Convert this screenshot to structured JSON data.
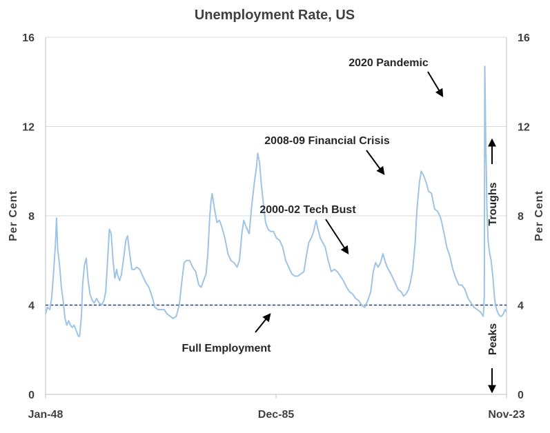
{
  "chart_data": {
    "type": "line",
    "title": "Unemployment Rate, US",
    "ylabel": "Per Cent",
    "ylabel_right": "Per Cent",
    "ylim": [
      0,
      16
    ],
    "yticks": [
      0,
      4,
      8,
      12,
      16
    ],
    "xlim": [
      1948.0,
      2023.83
    ],
    "xticks": [
      {
        "label": "Jan-48",
        "value": 1948.0
      },
      {
        "label": "Dec-85",
        "value": 1985.92
      },
      {
        "label": "Nov-23",
        "value": 2023.83
      }
    ],
    "grid": true,
    "reference_line": {
      "label": "Full Employment",
      "value": 4,
      "style": "dashed",
      "color": "#1f3c88"
    },
    "series": [
      {
        "color": "#9dc3e6",
        "points": [
          [
            1948.0,
            3.6
          ],
          [
            1948.3,
            3.9
          ],
          [
            1948.7,
            3.8
          ],
          [
            1949.0,
            4.3
          ],
          [
            1949.3,
            5.4
          ],
          [
            1949.6,
            6.6
          ],
          [
            1949.8,
            7.9
          ],
          [
            1950.0,
            6.5
          ],
          [
            1950.3,
            5.8
          ],
          [
            1950.6,
            4.8
          ],
          [
            1950.9,
            4.2
          ],
          [
            1951.2,
            3.4
          ],
          [
            1951.5,
            3.1
          ],
          [
            1951.8,
            3.3
          ],
          [
            1952.1,
            3.1
          ],
          [
            1952.4,
            3.0
          ],
          [
            1952.7,
            3.1
          ],
          [
            1953.0,
            2.9
          ],
          [
            1953.4,
            2.6
          ],
          [
            1953.6,
            2.6
          ],
          [
            1953.9,
            3.5
          ],
          [
            1954.1,
            4.9
          ],
          [
            1954.4,
            5.8
          ],
          [
            1954.7,
            6.1
          ],
          [
            1955.0,
            5.1
          ],
          [
            1955.3,
            4.5
          ],
          [
            1955.7,
            4.2
          ],
          [
            1956.0,
            4.1
          ],
          [
            1956.4,
            4.3
          ],
          [
            1956.8,
            4.1
          ],
          [
            1957.2,
            4.0
          ],
          [
            1957.6,
            4.2
          ],
          [
            1957.9,
            4.6
          ],
          [
            1958.2,
            6.0
          ],
          [
            1958.5,
            7.4
          ],
          [
            1958.8,
            7.2
          ],
          [
            1959.1,
            6.0
          ],
          [
            1959.4,
            5.2
          ],
          [
            1959.7,
            5.6
          ],
          [
            1959.9,
            5.3
          ],
          [
            1960.2,
            5.1
          ],
          [
            1960.5,
            5.4
          ],
          [
            1960.9,
            6.2
          ],
          [
            1961.2,
            6.9
          ],
          [
            1961.5,
            7.1
          ],
          [
            1961.9,
            6.2
          ],
          [
            1962.2,
            5.6
          ],
          [
            1962.6,
            5.6
          ],
          [
            1963.0,
            5.7
          ],
          [
            1963.5,
            5.6
          ],
          [
            1964.0,
            5.3
          ],
          [
            1964.5,
            5.0
          ],
          [
            1965.0,
            4.8
          ],
          [
            1965.5,
            4.4
          ],
          [
            1966.0,
            3.9
          ],
          [
            1966.5,
            3.8
          ],
          [
            1967.0,
            3.8
          ],
          [
            1967.5,
            3.8
          ],
          [
            1968.0,
            3.6
          ],
          [
            1968.5,
            3.5
          ],
          [
            1969.0,
            3.4
          ],
          [
            1969.5,
            3.5
          ],
          [
            1970.0,
            4.0
          ],
          [
            1970.4,
            5.0
          ],
          [
            1970.8,
            5.9
          ],
          [
            1971.2,
            6.0
          ],
          [
            1971.7,
            6.0
          ],
          [
            1972.2,
            5.7
          ],
          [
            1972.7,
            5.5
          ],
          [
            1973.2,
            4.9
          ],
          [
            1973.6,
            4.8
          ],
          [
            1974.0,
            5.1
          ],
          [
            1974.4,
            5.4
          ],
          [
            1974.7,
            6.3
          ],
          [
            1975.0,
            7.9
          ],
          [
            1975.2,
            8.6
          ],
          [
            1975.4,
            9.0
          ],
          [
            1975.8,
            8.3
          ],
          [
            1976.2,
            7.7
          ],
          [
            1976.6,
            7.8
          ],
          [
            1977.0,
            7.5
          ],
          [
            1977.5,
            7.0
          ],
          [
            1978.0,
            6.3
          ],
          [
            1978.5,
            6.0
          ],
          [
            1979.0,
            5.9
          ],
          [
            1979.5,
            5.7
          ],
          [
            1979.9,
            6.0
          ],
          [
            1980.3,
            7.2
          ],
          [
            1980.6,
            7.8
          ],
          [
            1981.0,
            7.5
          ],
          [
            1981.5,
            7.2
          ],
          [
            1981.9,
            8.4
          ],
          [
            1982.3,
            9.4
          ],
          [
            1982.7,
            10.2
          ],
          [
            1982.9,
            10.8
          ],
          [
            1983.2,
            10.4
          ],
          [
            1983.5,
            9.4
          ],
          [
            1983.9,
            8.4
          ],
          [
            1984.2,
            7.7
          ],
          [
            1984.6,
            7.4
          ],
          [
            1985.0,
            7.3
          ],
          [
            1985.5,
            7.3
          ],
          [
            1986.0,
            7.0
          ],
          [
            1986.5,
            6.9
          ],
          [
            1987.0,
            6.6
          ],
          [
            1987.5,
            6.0
          ],
          [
            1988.0,
            5.7
          ],
          [
            1988.5,
            5.4
          ],
          [
            1989.0,
            5.3
          ],
          [
            1989.5,
            5.3
          ],
          [
            1990.0,
            5.4
          ],
          [
            1990.5,
            5.5
          ],
          [
            1990.9,
            6.2
          ],
          [
            1991.3,
            6.8
          ],
          [
            1991.7,
            7.0
          ],
          [
            1992.1,
            7.3
          ],
          [
            1992.5,
            7.8
          ],
          [
            1992.8,
            7.4
          ],
          [
            1993.2,
            7.0
          ],
          [
            1993.6,
            6.8
          ],
          [
            1994.0,
            6.6
          ],
          [
            1994.5,
            6.0
          ],
          [
            1995.0,
            5.5
          ],
          [
            1995.5,
            5.6
          ],
          [
            1996.0,
            5.5
          ],
          [
            1996.5,
            5.3
          ],
          [
            1997.0,
            5.1
          ],
          [
            1997.5,
            4.8
          ],
          [
            1998.0,
            4.6
          ],
          [
            1998.5,
            4.5
          ],
          [
            1999.0,
            4.3
          ],
          [
            1999.5,
            4.2
          ],
          [
            2000.0,
            4.0
          ],
          [
            2000.5,
            3.9
          ],
          [
            2001.0,
            4.2
          ],
          [
            2001.5,
            4.6
          ],
          [
            2001.9,
            5.5
          ],
          [
            2002.3,
            5.9
          ],
          [
            2002.7,
            5.7
          ],
          [
            2003.1,
            5.9
          ],
          [
            2003.5,
            6.3
          ],
          [
            2003.8,
            6.0
          ],
          [
            2004.2,
            5.7
          ],
          [
            2004.6,
            5.5
          ],
          [
            2005.0,
            5.3
          ],
          [
            2005.5,
            5.0
          ],
          [
            2006.0,
            4.7
          ],
          [
            2006.5,
            4.6
          ],
          [
            2006.9,
            4.4
          ],
          [
            2007.3,
            4.5
          ],
          [
            2007.7,
            4.7
          ],
          [
            2008.0,
            5.0
          ],
          [
            2008.4,
            5.6
          ],
          [
            2008.8,
            6.8
          ],
          [
            2009.1,
            8.3
          ],
          [
            2009.5,
            9.5
          ],
          [
            2009.8,
            10.0
          ],
          [
            2010.2,
            9.8
          ],
          [
            2010.6,
            9.5
          ],
          [
            2011.0,
            9.1
          ],
          [
            2011.5,
            9.0
          ],
          [
            2012.0,
            8.3
          ],
          [
            2012.5,
            8.2
          ],
          [
            2013.0,
            7.9
          ],
          [
            2013.5,
            7.3
          ],
          [
            2014.0,
            6.6
          ],
          [
            2014.5,
            6.2
          ],
          [
            2015.0,
            5.6
          ],
          [
            2015.5,
            5.2
          ],
          [
            2016.0,
            4.9
          ],
          [
            2016.5,
            4.9
          ],
          [
            2017.0,
            4.7
          ],
          [
            2017.5,
            4.3
          ],
          [
            2018.0,
            4.1
          ],
          [
            2018.5,
            3.9
          ],
          [
            2019.0,
            3.8
          ],
          [
            2019.5,
            3.7
          ],
          [
            2020.0,
            3.5
          ],
          [
            2020.17,
            4.4
          ],
          [
            2020.25,
            14.7
          ],
          [
            2020.33,
            13.2
          ],
          [
            2020.42,
            11.0
          ],
          [
            2020.5,
            10.2
          ],
          [
            2020.6,
            8.4
          ],
          [
            2020.8,
            6.9
          ],
          [
            2021.0,
            6.4
          ],
          [
            2021.3,
            6.0
          ],
          [
            2021.6,
            5.2
          ],
          [
            2021.9,
            4.2
          ],
          [
            2022.2,
            3.8
          ],
          [
            2022.5,
            3.6
          ],
          [
            2022.8,
            3.5
          ],
          [
            2023.0,
            3.5
          ],
          [
            2023.3,
            3.6
          ],
          [
            2023.6,
            3.8
          ],
          [
            2023.83,
            3.7
          ]
        ]
      }
    ],
    "annotations": [
      {
        "text": "2020 Pandemic",
        "target": [
          2020.05,
          13.2
        ]
      },
      {
        "text": "2008-09 Financial Crisis",
        "target": [
          2009.8,
          9.9
        ]
      },
      {
        "text": "2000-02 Tech Bust",
        "target": [
          2003.3,
          6.3
        ]
      },
      {
        "text": "Full Employment",
        "target": [
          1987.6,
          4.0
        ]
      }
    ],
    "right_side_labels": {
      "troughs": "Troughs",
      "peaks": "Peaks"
    }
  }
}
